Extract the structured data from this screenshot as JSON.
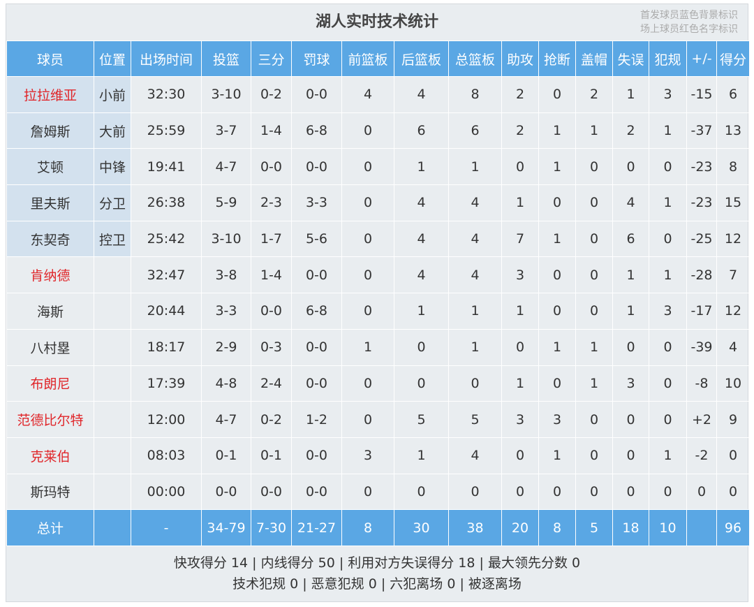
{
  "title": "湖人实时技术统计",
  "legend": [
    "首发球员蓝色背景标识",
    "场上球员红色名字标识"
  ],
  "colors": {
    "header": "#5aa7e4",
    "starter_bg": "#d3e1ee",
    "on_court_name": "#e0262a"
  },
  "columns": [
    "球员",
    "位置",
    "出场时间",
    "投篮",
    "三分",
    "罚球",
    "前篮板",
    "后篮板",
    "总篮板",
    "助攻",
    "抢断",
    "盖帽",
    "失误",
    "犯规",
    "+/-",
    "得分"
  ],
  "players": [
    {
      "name": "拉拉维亚",
      "starter": true,
      "on_court": true,
      "cells": [
        "小前",
        "32:30",
        "3-10",
        "0-2",
        "0-0",
        "4",
        "4",
        "8",
        "2",
        "0",
        "2",
        "1",
        "3",
        "-15",
        "6"
      ]
    },
    {
      "name": "詹姆斯",
      "starter": true,
      "on_court": false,
      "cells": [
        "大前",
        "25:59",
        "3-7",
        "1-4",
        "6-8",
        "0",
        "6",
        "6",
        "2",
        "1",
        "1",
        "2",
        "1",
        "-37",
        "13"
      ]
    },
    {
      "name": "艾顿",
      "starter": true,
      "on_court": false,
      "cells": [
        "中锋",
        "19:41",
        "4-7",
        "0-0",
        "0-0",
        "0",
        "1",
        "1",
        "0",
        "1",
        "0",
        "0",
        "0",
        "-23",
        "8"
      ]
    },
    {
      "name": "里夫斯",
      "starter": true,
      "on_court": false,
      "cells": [
        "分卫",
        "26:38",
        "5-9",
        "2-3",
        "3-3",
        "0",
        "4",
        "4",
        "1",
        "0",
        "0",
        "4",
        "1",
        "-23",
        "15"
      ]
    },
    {
      "name": "东契奇",
      "starter": true,
      "on_court": false,
      "cells": [
        "控卫",
        "25:42",
        "3-10",
        "1-7",
        "5-6",
        "0",
        "4",
        "4",
        "7",
        "1",
        "0",
        "6",
        "0",
        "-25",
        "12"
      ]
    },
    {
      "name": "肯纳德",
      "starter": false,
      "on_court": true,
      "cells": [
        "",
        "32:47",
        "3-8",
        "1-4",
        "0-0",
        "0",
        "4",
        "4",
        "3",
        "0",
        "0",
        "1",
        "1",
        "-28",
        "7"
      ]
    },
    {
      "name": "海斯",
      "starter": false,
      "on_court": false,
      "cells": [
        "",
        "20:44",
        "3-3",
        "0-0",
        "6-8",
        "0",
        "1",
        "1",
        "1",
        "0",
        "0",
        "1",
        "3",
        "-17",
        "12"
      ]
    },
    {
      "name": "八村塁",
      "starter": false,
      "on_court": false,
      "cells": [
        "",
        "18:17",
        "2-9",
        "0-3",
        "0-0",
        "1",
        "0",
        "1",
        "0",
        "1",
        "1",
        "0",
        "0",
        "-39",
        "4"
      ]
    },
    {
      "name": "布朗尼",
      "starter": false,
      "on_court": true,
      "cells": [
        "",
        "17:39",
        "4-8",
        "2-4",
        "0-0",
        "0",
        "0",
        "0",
        "1",
        "0",
        "1",
        "3",
        "0",
        "-8",
        "10"
      ]
    },
    {
      "name": "范德比尔特",
      "starter": false,
      "on_court": true,
      "cells": [
        "",
        "12:00",
        "4-7",
        "0-2",
        "1-2",
        "0",
        "5",
        "5",
        "3",
        "3",
        "0",
        "0",
        "0",
        "+2",
        "9"
      ]
    },
    {
      "name": "克莱伯",
      "starter": false,
      "on_court": true,
      "cells": [
        "",
        "08:03",
        "0-1",
        "0-1",
        "0-0",
        "3",
        "1",
        "4",
        "0",
        "1",
        "0",
        "0",
        "1",
        "-2",
        "0"
      ]
    },
    {
      "name": "斯玛特",
      "starter": false,
      "on_court": false,
      "cells": [
        "",
        "00:00",
        "0-0",
        "0-0",
        "0-0",
        "0",
        "0",
        "0",
        "0",
        "0",
        "0",
        "0",
        "0",
        "0",
        "0"
      ]
    }
  ],
  "total": [
    "总计",
    "",
    "-",
    "34-79",
    "7-30",
    "21-27",
    "8",
    "30",
    "38",
    "20",
    "8",
    "5",
    "18",
    "10",
    "",
    "96"
  ],
  "footer": [
    "快攻得分 14 | 内线得分 50 | 利用对方失误得分 18 | 最大领先分数 0",
    "技术犯规 0 | 恶意犯规 0 | 六犯离场 0 | 被逐离场"
  ]
}
